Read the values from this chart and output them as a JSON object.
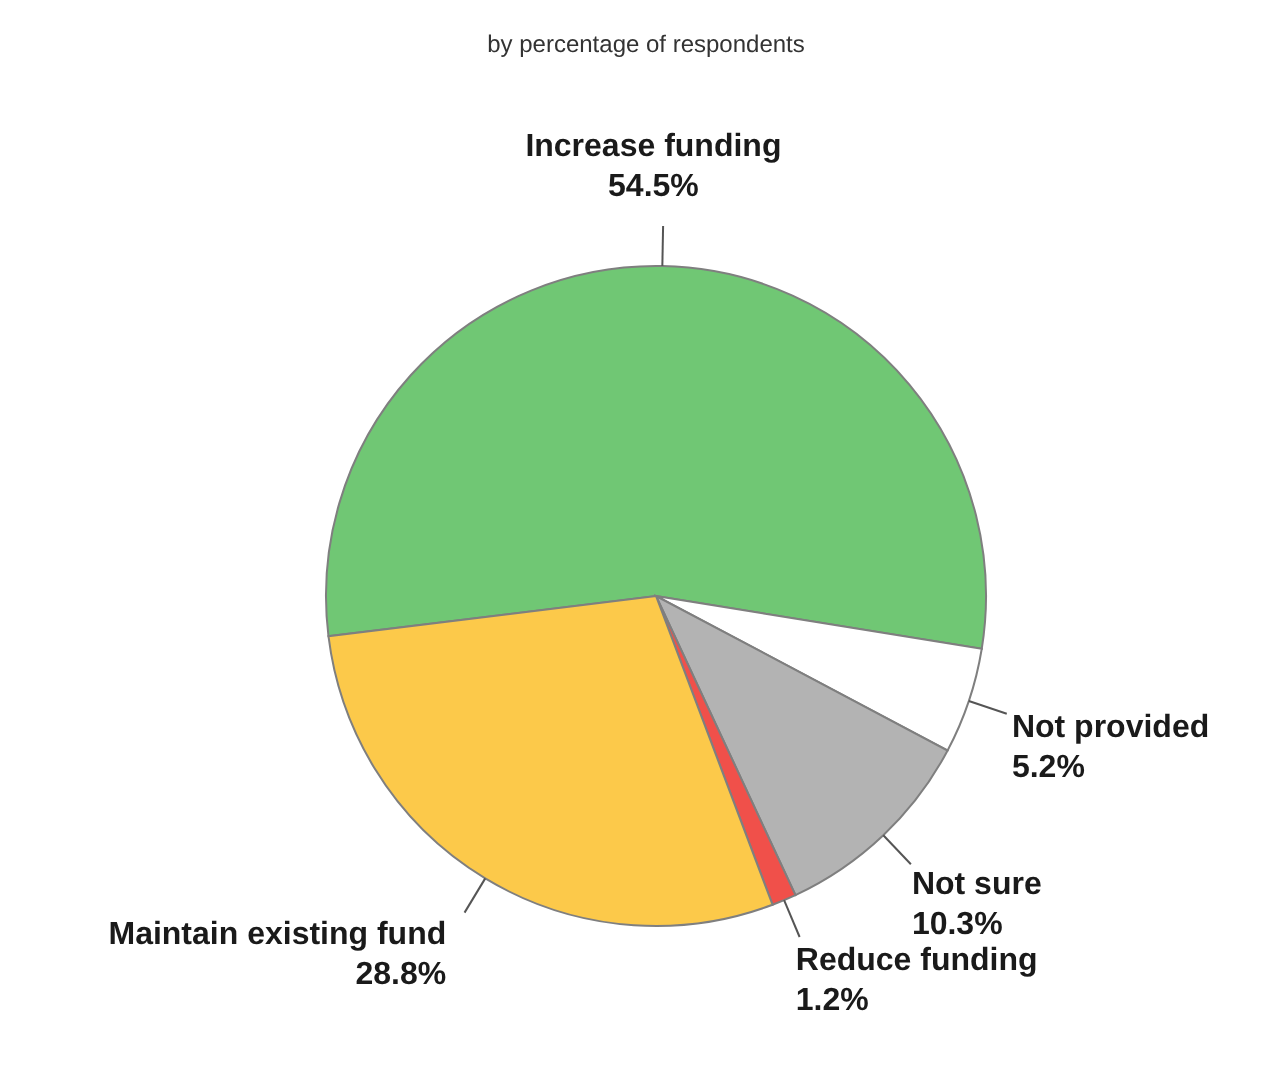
{
  "chart_data": {
    "type": "pie",
    "subtitle": "by percentage of respondents",
    "categories": [
      "Increase funding",
      "Not provided",
      "Not sure",
      "Reduce funding",
      "Maintain existing fund"
    ],
    "values": [
      54.5,
      5.2,
      10.3,
      1.2,
      28.8
    ],
    "colors": [
      "#70c774",
      "#ffffff",
      "#b3b3b3",
      "#f0504a",
      "#fcc94a"
    ],
    "value_labels": [
      "54.5%",
      "5.2%",
      "10.3%",
      "1.2%",
      "28.8%"
    ],
    "legend": false
  }
}
